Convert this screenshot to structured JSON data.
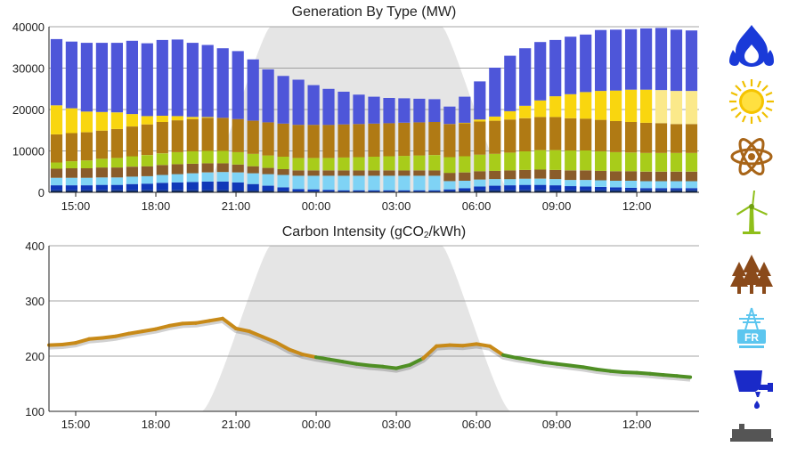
{
  "colors": {
    "gas": "#4e56d9",
    "solar": "#f9d60f",
    "solar_light": "#fbe98a",
    "nuclear": "#b07a14",
    "wind": "#a8cc1a",
    "biomass": "#8a5c2a",
    "imports": "#7fd3f5",
    "pumped": "#1038b8",
    "other": "#0a2a6a",
    "intensity_high": "#c88a18",
    "intensity_low": "#4f8f24",
    "night_shade": "#e5e5e5",
    "grid": "#888888"
  },
  "icons": [
    "gas-flame-icon",
    "sun-icon",
    "atom-icon",
    "wind-turbine-icon",
    "trees-icon",
    "interconnector-fr-icon",
    "pumped-storage-icon",
    "coal-train-icon"
  ],
  "chart_data": [
    {
      "type": "bar",
      "stacked": true,
      "title": "Generation By Type (MW)",
      "ylim": [
        0,
        40000
      ],
      "yticks": [
        0,
        10000,
        20000,
        30000,
        40000
      ],
      "xticks": [
        "15:00",
        "18:00",
        "21:00",
        "00:00",
        "03:00",
        "06:00",
        "09:00",
        "12:00"
      ],
      "legend": "icons-right",
      "series": [
        {
          "key": "other",
          "values": [
            500,
            500,
            500,
            500,
            500,
            500,
            500,
            500,
            500,
            500,
            500,
            500,
            400,
            400,
            400,
            300,
            200,
            200,
            200,
            200,
            200,
            200,
            200,
            200,
            200,
            200,
            300,
            400,
            500,
            500,
            500,
            500,
            500,
            500,
            500,
            500,
            500,
            500,
            500,
            500,
            500,
            500,
            500
          ]
        },
        {
          "key": "pumped",
          "values": [
            1200,
            1200,
            1200,
            1300,
            1300,
            1500,
            1600,
            1800,
            1900,
            2000,
            2100,
            2100,
            2000,
            1600,
            1200,
            900,
            600,
            500,
            400,
            300,
            300,
            300,
            300,
            300,
            300,
            300,
            400,
            600,
            900,
            1100,
            1200,
            1300,
            1300,
            1200,
            1000,
            900,
            800,
            700,
            600,
            500,
            500,
            500,
            500
          ]
        },
        {
          "key": "imports",
          "values": [
            1800,
            1800,
            1800,
            1800,
            1800,
            1800,
            1800,
            1900,
            2000,
            2100,
            2200,
            2300,
            2400,
            2600,
            2800,
            3000,
            3200,
            3300,
            3400,
            3500,
            3500,
            3500,
            3500,
            3500,
            3500,
            3500,
            2000,
            1800,
            1700,
            1600,
            1500,
            1500,
            1500,
            1500,
            1500,
            1600,
            1600,
            1600,
            1700,
            1700,
            1700,
            1700,
            1700
          ]
        },
        {
          "key": "biomass",
          "values": [
            2200,
            2300,
            2300,
            2400,
            2400,
            2400,
            2400,
            2400,
            2400,
            2300,
            2200,
            2100,
            1900,
            1700,
            1500,
            1400,
            1300,
            1300,
            1300,
            1300,
            1300,
            1300,
            1300,
            1300,
            1300,
            1300,
            2000,
            2000,
            2000,
            2000,
            2100,
            2100,
            2200,
            2200,
            2300,
            2300,
            2300,
            2300,
            2300,
            2300,
            2300,
            2300,
            2300
          ]
        },
        {
          "key": "wind",
          "values": [
            1500,
            1700,
            1900,
            2100,
            2300,
            2500,
            2700,
            2800,
            2900,
            3000,
            3000,
            3000,
            3000,
            3000,
            3000,
            3000,
            3000,
            3000,
            3000,
            3100,
            3200,
            3300,
            3400,
            3500,
            3600,
            3700,
            3800,
            3900,
            4000,
            4100,
            4300,
            4500,
            4700,
            4800,
            4800,
            4800,
            4700,
            4600,
            4500,
            4500,
            4500,
            4500,
            4500
          ]
        },
        {
          "key": "nuclear",
          "values": [
            6800,
            6800,
            6800,
            6800,
            7000,
            7200,
            7400,
            7600,
            7700,
            7800,
            8000,
            8000,
            8000,
            8000,
            8000,
            8000,
            8000,
            8000,
            8000,
            8000,
            8000,
            8000,
            8000,
            8000,
            8000,
            8000,
            8000,
            8000,
            8000,
            8000,
            8000,
            8000,
            8000,
            8000,
            7800,
            7700,
            7600,
            7500,
            7400,
            7300,
            7200,
            7000,
            7000
          ]
        },
        {
          "key": "solar",
          "values": [
            7000,
            6000,
            5000,
            4500,
            4000,
            3000,
            2000,
            1500,
            1000,
            500,
            200,
            0,
            0,
            0,
            0,
            0,
            0,
            0,
            0,
            0,
            0,
            0,
            0,
            0,
            0,
            0,
            0,
            100,
            500,
            1000,
            2000,
            3000,
            4000,
            5000,
            5800,
            6400,
            7000,
            7400,
            7800,
            8000,
            8000,
            8000,
            8000
          ]
        },
        {
          "key": "gas",
          "values": [
            16000,
            16100,
            16600,
            16700,
            16800,
            17700,
            17600,
            18300,
            18500,
            17900,
            17400,
            16800,
            16400,
            14800,
            12800,
            11500,
            10900,
            9600,
            8700,
            7900,
            7100,
            6500,
            6100,
            5900,
            5700,
            5500,
            4200,
            6300,
            9200,
            11800,
            13400,
            13900,
            14100,
            13600,
            13900,
            13900,
            14700,
            14700,
            14600,
            14800,
            15000,
            14800,
            14600
          ]
        }
      ]
    },
    {
      "type": "line",
      "title": "Carbon Intensity (gCO",
      "title_sub": "2",
      "title_tail": "/kWh)",
      "ylim": [
        100,
        400
      ],
      "yticks": [
        100,
        200,
        300,
        400
      ],
      "xticks": [
        "15:00",
        "18:00",
        "21:00",
        "00:00",
        "03:00",
        "06:00",
        "09:00",
        "12:00"
      ],
      "threshold": 200,
      "hours": [
        0,
        0.5,
        1,
        1.5,
        2,
        2.5,
        3,
        3.5,
        4,
        4.5,
        5,
        5.5,
        6,
        6.5,
        7,
        7.5,
        8,
        8.5,
        9,
        9.5,
        10,
        10.5,
        11,
        11.5,
        12,
        12.5,
        13,
        13.5,
        14,
        14.5,
        15,
        15.5,
        16,
        16.5,
        17,
        17.5,
        18,
        18.5,
        19,
        19.5,
        20,
        20.5,
        21,
        21.5,
        22,
        22.5,
        23,
        23.5,
        24
      ],
      "values": [
        220,
        221,
        224,
        231,
        233,
        236,
        241,
        245,
        249,
        255,
        259,
        260,
        264,
        268,
        250,
        245,
        235,
        225,
        212,
        203,
        198,
        194,
        190,
        186,
        183,
        181,
        178,
        184,
        196,
        218,
        220,
        219,
        222,
        218,
        202,
        197,
        193,
        189,
        186,
        183,
        180,
        176,
        173,
        171,
        170,
        168,
        166,
        164,
        162
      ]
    }
  ]
}
